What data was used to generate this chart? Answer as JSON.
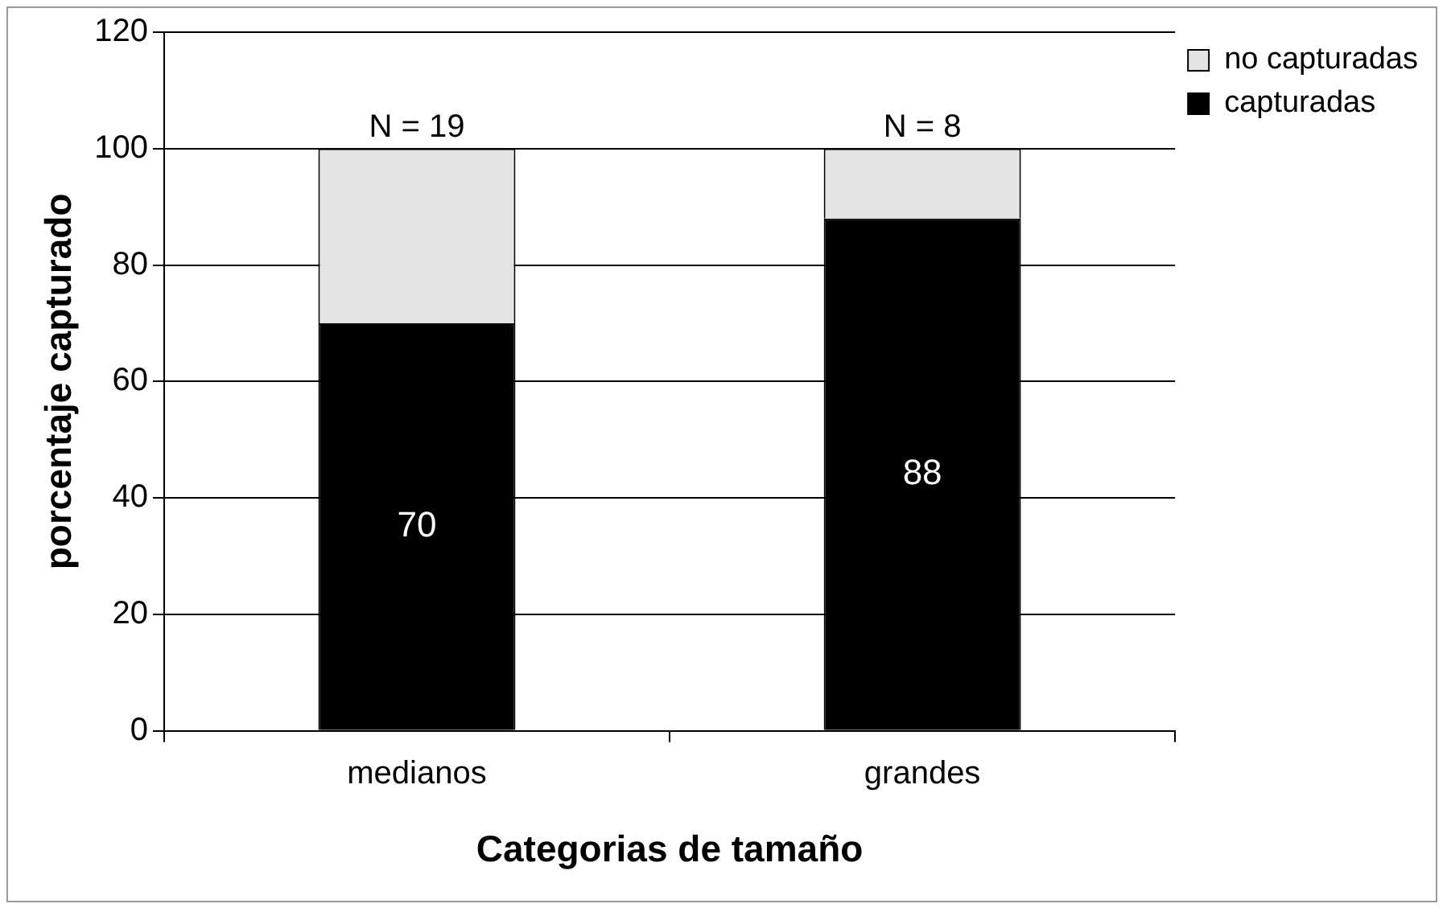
{
  "chart_data": {
    "type": "bar",
    "stacked": true,
    "xlabel": "Categorias de tamaño",
    "ylabel": "porcentaje capturado",
    "categories": [
      "medianos",
      "grandes"
    ],
    "series": [
      {
        "name": "capturadas",
        "color": "#000000",
        "values": [
          70,
          88
        ],
        "value_labels": [
          "70",
          "88"
        ]
      },
      {
        "name": "no capturadas",
        "color": "#e4e4e4",
        "values": [
          30,
          12
        ]
      }
    ],
    "ylim": [
      0,
      120
    ],
    "yticks": [
      0,
      20,
      40,
      60,
      80,
      100,
      120
    ],
    "grid": "y",
    "legend": "top right",
    "annotations": [
      {
        "text": "N = 19",
        "x": "medianos",
        "y": 100
      },
      {
        "text": "N = 8",
        "x": "grandes",
        "y": 100
      }
    ]
  }
}
